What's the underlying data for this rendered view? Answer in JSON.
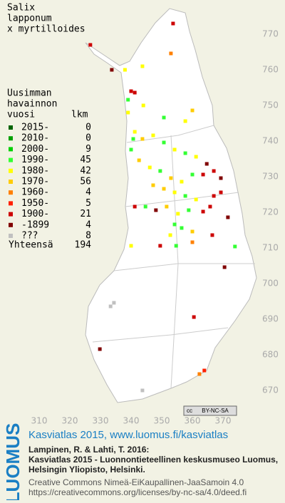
{
  "title": [
    "Salix",
    "lapponum",
    "x myrtilloides"
  ],
  "legend": {
    "heading": [
      "Uusimman",
      "havainnon",
      "vuosi"
    ],
    "count_heading": "lkm",
    "rows": [
      {
        "label": "2015-",
        "count": 0,
        "color": "#006400"
      },
      {
        "label": "2010-",
        "count": 0,
        "color": "#00a000"
      },
      {
        "label": "2000-",
        "count": 9,
        "color": "#00d000"
      },
      {
        "label": "1990-",
        "count": 45,
        "color": "#33ff33"
      },
      {
        "label": "1980-",
        "count": 42,
        "color": "#ffff00"
      },
      {
        "label": "1970-",
        "count": 56,
        "color": "#ffcc00"
      },
      {
        "label": "1960-",
        "count": 4,
        "color": "#ff8000"
      },
      {
        "label": "1950-",
        "count": 5,
        "color": "#ff2000"
      },
      {
        "label": "1900-",
        "count": 21,
        "color": "#cc0000"
      },
      {
        "label": "-1899",
        "count": 4,
        "color": "#800000"
      },
      {
        "label": "???",
        "count": 8,
        "color": "#c0c0c0"
      }
    ],
    "total_label": "Yhteensä",
    "total": 194
  },
  "xticks": [
    310,
    320,
    330,
    340,
    350,
    360,
    370
  ],
  "yticks": [
    670,
    680,
    690,
    700,
    710,
    720,
    730,
    740,
    750,
    760,
    770
  ],
  "squares": [
    {
      "e": 326.7,
      "n": 767,
      "k": 8
    },
    {
      "e": 353.7,
      "n": 773,
      "k": 8
    },
    {
      "e": 353,
      "n": 764.6,
      "k": 6
    },
    {
      "e": 333.7,
      "n": 760,
      "k": 9
    },
    {
      "e": 338,
      "n": 760,
      "k": 4
    },
    {
      "e": 343.7,
      "n": 761,
      "k": 4
    },
    {
      "e": 340,
      "n": 754,
      "k": 8
    },
    {
      "e": 339,
      "n": 751.6,
      "k": 3
    },
    {
      "e": 344,
      "n": 750,
      "k": 4
    },
    {
      "e": 360,
      "n": 748.6,
      "k": 5
    },
    {
      "e": 357.7,
      "n": 745.6,
      "k": 4
    },
    {
      "e": 350.7,
      "n": 746.6,
      "k": 3
    },
    {
      "e": 341.2,
      "n": 742.6,
      "k": 4
    },
    {
      "e": 343.7,
      "n": 740.6,
      "k": 5
    },
    {
      "e": 347.2,
      "n": 741.6,
      "k": 4
    },
    {
      "e": 350.7,
      "n": 739.6,
      "k": 3
    },
    {
      "e": 354.2,
      "n": 737.6,
      "k": 4
    },
    {
      "e": 357.7,
      "n": 736.6,
      "k": 3
    },
    {
      "e": 361.2,
      "n": 735.6,
      "k": 4
    },
    {
      "e": 364.7,
      "n": 733.6,
      "k": 9
    },
    {
      "e": 367,
      "n": 731.6,
      "k": 8
    },
    {
      "e": 340,
      "n": 737.6,
      "k": 3
    },
    {
      "e": 342.6,
      "n": 734.6,
      "k": 5
    },
    {
      "e": 346.1,
      "n": 732.6,
      "k": 4
    },
    {
      "e": 349.5,
      "n": 731.6,
      "k": 3
    },
    {
      "e": 353,
      "n": 729.6,
      "k": 5
    },
    {
      "e": 356.5,
      "n": 728.6,
      "k": 4
    },
    {
      "e": 360,
      "n": 730.6,
      "k": 3
    },
    {
      "e": 363.5,
      "n": 730.6,
      "k": 8
    },
    {
      "e": 369.3,
      "n": 729.6,
      "k": 9
    },
    {
      "e": 347.2,
      "n": 727.6,
      "k": 5
    },
    {
      "e": 350.7,
      "n": 726.6,
      "k": 5
    },
    {
      "e": 354.2,
      "n": 725.6,
      "k": 4
    },
    {
      "e": 357.7,
      "n": 724.6,
      "k": 3
    },
    {
      "e": 361.2,
      "n": 723.6,
      "k": 4
    },
    {
      "e": 367,
      "n": 724.6,
      "k": 8
    },
    {
      "e": 369.3,
      "n": 725.6,
      "k": 8
    },
    {
      "e": 341.2,
      "n": 721.6,
      "k": 8
    },
    {
      "e": 344.7,
      "n": 721.6,
      "k": 3
    },
    {
      "e": 348.1,
      "n": 720.6,
      "k": 9
    },
    {
      "e": 351.6,
      "n": 721.6,
      "k": 5
    },
    {
      "e": 355.3,
      "n": 719.6,
      "k": 4
    },
    {
      "e": 358.8,
      "n": 720.6,
      "k": 3
    },
    {
      "e": 363.5,
      "n": 720.2,
      "k": 8
    },
    {
      "e": 365.8,
      "n": 721.6,
      "k": 8
    },
    {
      "e": 371.6,
      "n": 718.6,
      "k": 9
    },
    {
      "e": 354.2,
      "n": 716.6,
      "k": 3
    },
    {
      "e": 356.5,
      "n": 715.6,
      "k": 3
    },
    {
      "e": 360,
      "n": 714.6,
      "k": 5
    },
    {
      "e": 352.8,
      "n": 713.6,
      "k": 4
    },
    {
      "e": 366.5,
      "n": 713.6,
      "k": 8
    },
    {
      "e": 360,
      "n": 711.6,
      "k": 6
    },
    {
      "e": 349.5,
      "n": 710.6,
      "k": 8
    },
    {
      "e": 340,
      "n": 710.6,
      "k": 4
    },
    {
      "e": 354.7,
      "n": 710.6,
      "k": 3
    },
    {
      "e": 373.9,
      "n": 710.4,
      "k": 3
    },
    {
      "e": 370.5,
      "n": 704.6,
      "k": 9
    },
    {
      "e": 360.5,
      "n": 690.6,
      "k": 8
    },
    {
      "e": 334.4,
      "n": 694.6,
      "k": 10
    },
    {
      "e": 333.3,
      "n": 693.6,
      "k": 10
    },
    {
      "e": 329.8,
      "n": 681.6,
      "k": 9
    },
    {
      "e": 363.9,
      "n": 675.6,
      "k": 7
    },
    {
      "e": 362.3,
      "n": 674.6,
      "k": 6
    },
    {
      "e": 343.7,
      "n": 670,
      "k": 10
    },
    {
      "e": 339,
      "n": 748,
      "k": 4
    },
    {
      "e": 341.2,
      "n": 753.6,
      "k": 8
    },
    {
      "e": 340.7,
      "n": 740.6,
      "k": 3
    }
  ],
  "badge": [
    "cc",
    "BY-NC-SA"
  ],
  "footer": {
    "logo": "LUOMUS",
    "link": "Kasviatlas 2015, www.luomus.fi/kasviatlas",
    "citation": [
      "Lampinen, R. & Lahti, T. 2016:",
      "Kasviatlas 2015 - Luonnontieteellinen keskusmuseo Luomus,",
      "Helsingin Yliopisto, Helsinki."
    ],
    "license": [
      "Creative Commons Nimeä-EiKaupallinen-JaaSamoin 4.0",
      "https://creativecommons.org/licenses/by-nc-sa/4.0/deed.fi"
    ]
  }
}
